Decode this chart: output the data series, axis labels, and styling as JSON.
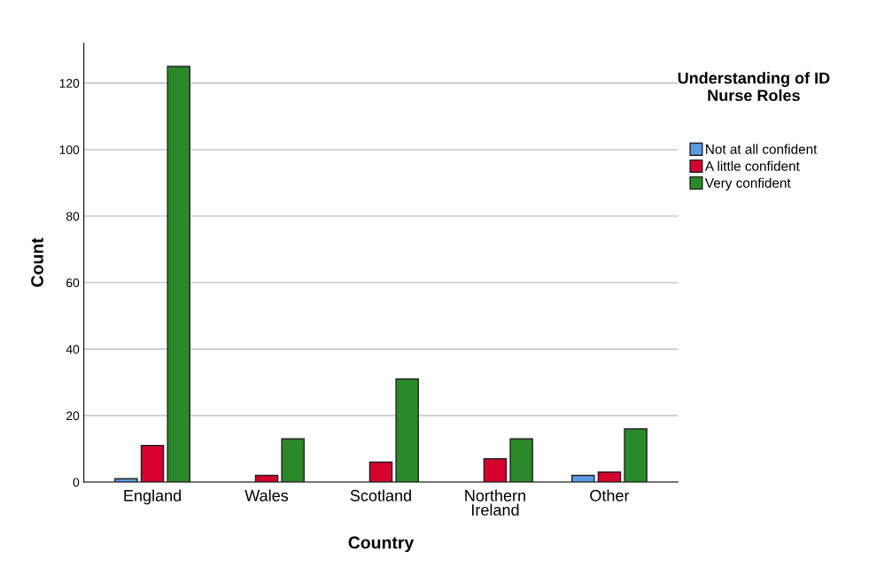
{
  "chart_data": {
    "type": "bar",
    "xlabel": "Country",
    "ylabel": "Count",
    "legend_title": "Understanding of ID Nurse Roles",
    "categories": [
      "England",
      "Wales",
      "Scotland",
      "Northern\nIreland",
      "Other"
    ],
    "series": [
      {
        "name": "Not at all confident",
        "color": "#5a9be6",
        "values": [
          1,
          null,
          null,
          null,
          2
        ]
      },
      {
        "name": "A little confident",
        "color": "#d6002f",
        "values": [
          11,
          2,
          6,
          7,
          3
        ]
      },
      {
        "name": "Very confident",
        "color": "#2a8a2a",
        "values": [
          125,
          13,
          31,
          13,
          16
        ]
      }
    ],
    "ylim": [
      0,
      132
    ],
    "yticks": [
      0,
      20,
      40,
      60,
      80,
      100,
      120
    ],
    "grid": "y",
    "legend": "top right"
  }
}
